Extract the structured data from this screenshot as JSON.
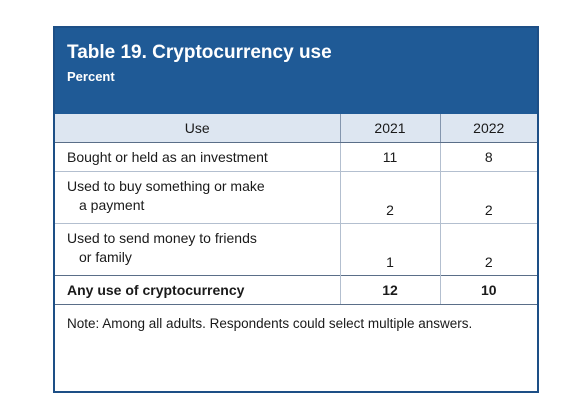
{
  "table": {
    "title": "Table 19. Cryptocurrency use",
    "subtitle": "Percent",
    "headers": [
      "Use",
      "2021",
      "2022"
    ],
    "rows": [
      {
        "label_line1": "Bought or held as an investment",
        "label_line2": "",
        "v2021": "11",
        "v2022": "8"
      },
      {
        "label_line1": "Used to buy something or make",
        "label_line2": "a payment",
        "v2021": "2",
        "v2022": "2"
      },
      {
        "label_line1": "Used to send money to friends",
        "label_line2": "or family",
        "v2021": "1",
        "v2022": "2"
      }
    ],
    "total": {
      "label": "Any use of cryptocurrency",
      "v2021": "12",
      "v2022": "10"
    },
    "note": "Note: Among all adults. Respondents could select multiple answers."
  },
  "colors": {
    "banner": "#1f5a96",
    "header_row": "#dde6f1",
    "border": "#1d4f86"
  }
}
